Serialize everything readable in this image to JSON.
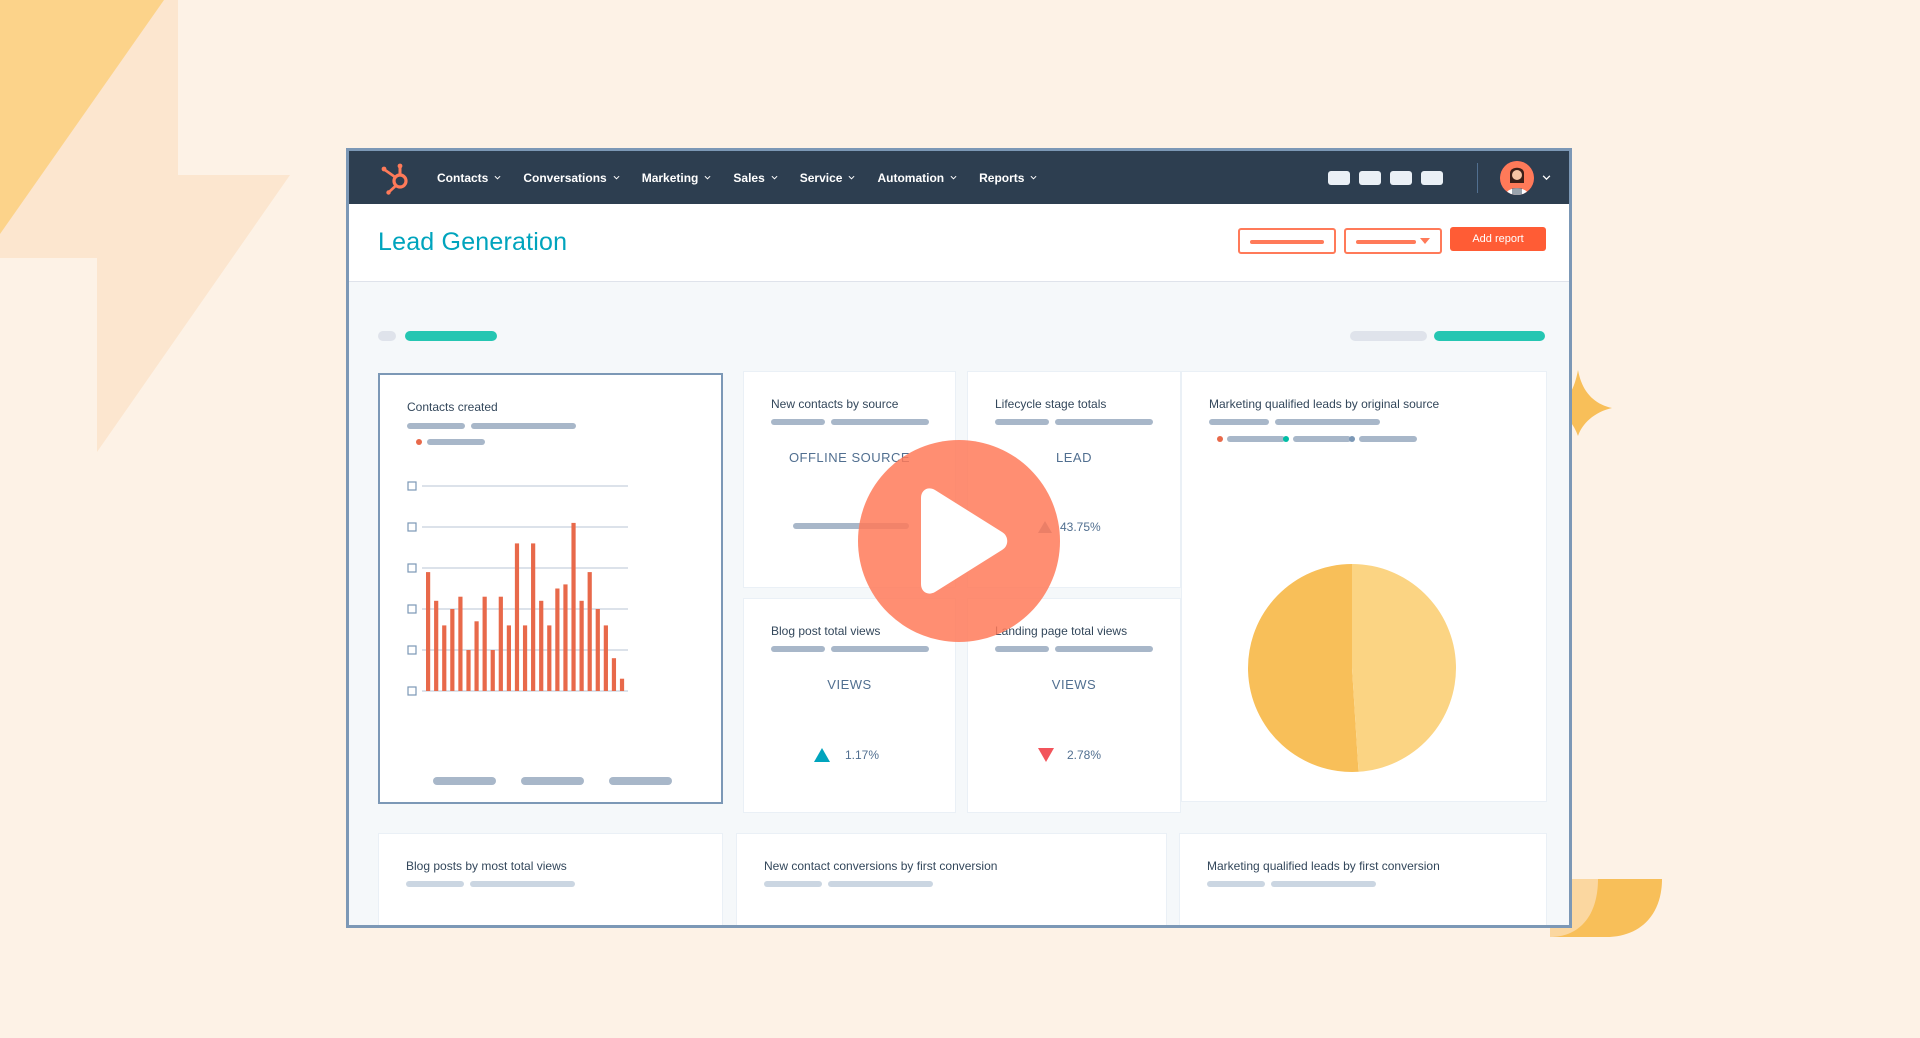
{
  "nav": {
    "items": [
      {
        "label": "Contacts"
      },
      {
        "label": "Conversations"
      },
      {
        "label": "Marketing"
      },
      {
        "label": "Sales"
      },
      {
        "label": "Service"
      },
      {
        "label": "Automation"
      },
      {
        "label": "Reports"
      }
    ]
  },
  "header": {
    "title": "Lead Generation",
    "add_report_label": "Add report"
  },
  "cards": {
    "contacts_created": {
      "title": "Contacts created"
    },
    "new_contacts_by_source": {
      "title": "New contacts by source",
      "metric_label": "OFFLINE SOURCE"
    },
    "lifecycle_stage_totals": {
      "title": "Lifecycle stage totals",
      "metric_label": "LEAD",
      "change": "43.75%"
    },
    "mql_by_original_source": {
      "title": "Marketing qualified leads by original source"
    },
    "blog_post_total_views": {
      "title": "Blog post total views",
      "metric_label": "VIEWS",
      "change": "1.17%"
    },
    "landing_page_total_views": {
      "title": "Landing page total views",
      "metric_label": "VIEWS",
      "change": "2.78%"
    },
    "blog_posts_by_most_views": {
      "title": "Blog posts by most total views"
    },
    "new_contact_conversions": {
      "title": "New contact conversions by first conversion"
    },
    "mql_by_first_conversion": {
      "title": "Marketing qualified leads by first conversion"
    }
  },
  "colors": {
    "accent_teal": "#00a4bd",
    "accent_orange": "#ff5c35",
    "bar_orange": "#e8694a",
    "nav_bg": "#2d3e50",
    "pie_dark": "#f8bf59",
    "pie_light": "#fbd483",
    "page_bg": "#fdf2e6"
  },
  "icons": {
    "logo": "hubspot-sprocket-icon",
    "play": "play-icon",
    "up": "triangle-up-icon",
    "down": "triangle-down-icon"
  },
  "chart_data": [
    {
      "type": "bar",
      "title": "Contacts created",
      "values": [
        29,
        22,
        16,
        20,
        23,
        10,
        17,
        23,
        10,
        23,
        16,
        36,
        16,
        36,
        22,
        16,
        25,
        26,
        41,
        22,
        29,
        20,
        16,
        8,
        3
      ],
      "ylim": [
        0,
        50
      ],
      "grid": true
    },
    {
      "type": "pie",
      "title": "Marketing qualified leads by original source",
      "values": [
        51,
        49
      ]
    }
  ]
}
